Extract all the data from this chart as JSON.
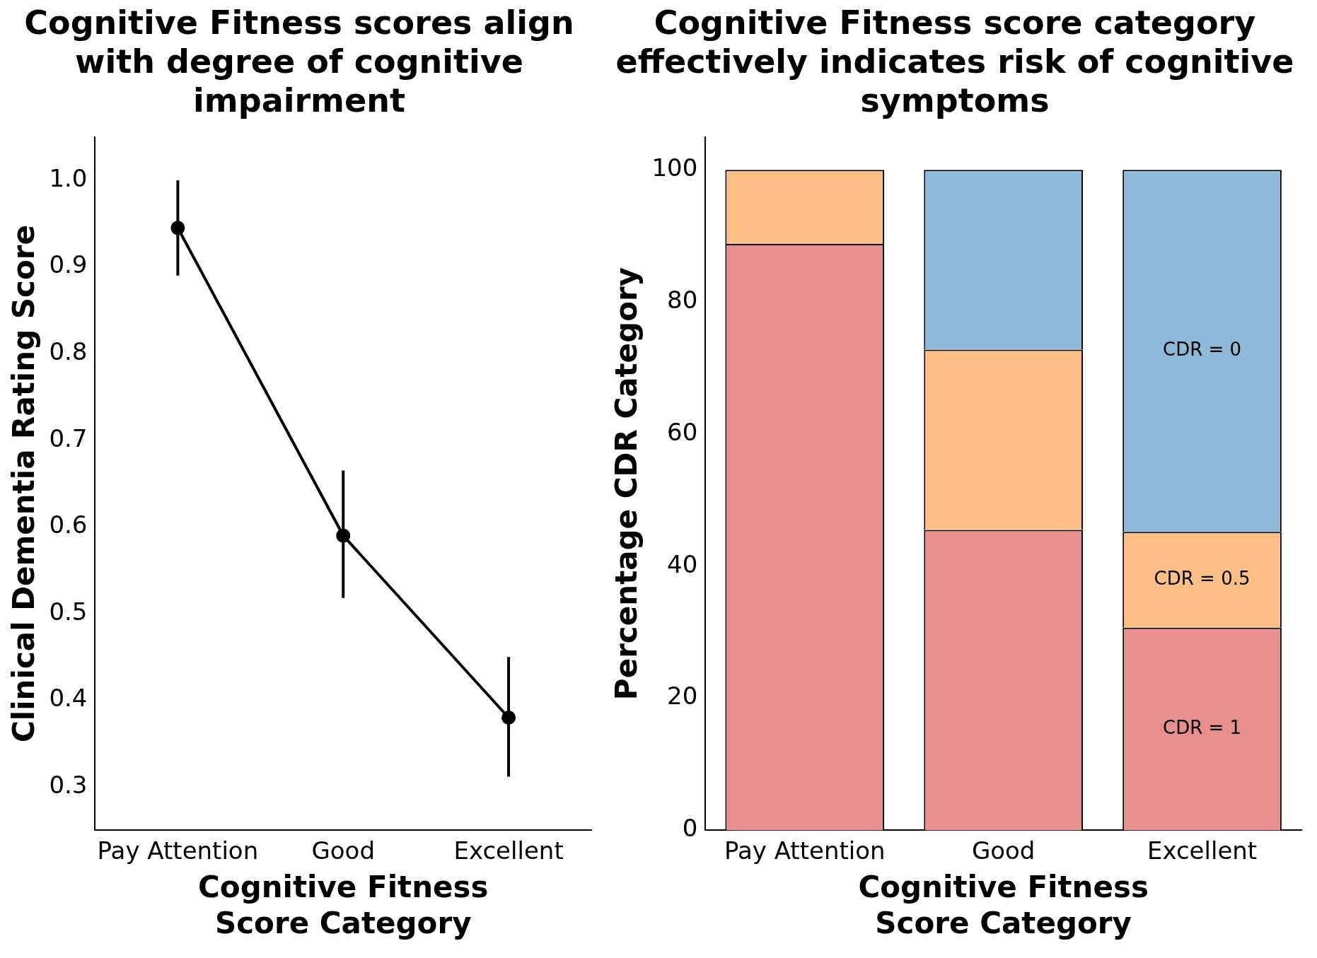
{
  "chart_data": [
    {
      "type": "line",
      "title": "Cognitive Fitness scores align with degree of cognitive impairment",
      "xlabel": "Cognitive Fitness Score Category",
      "ylabel": "Clinical Dementia Rating Score",
      "categories": [
        "Pay Attention",
        "Good",
        "Excellent"
      ],
      "values": [
        0.945,
        0.59,
        0.38
      ],
      "errors": [
        [
          0.89,
          1.0
        ],
        [
          0.518,
          0.665
        ],
        [
          0.312,
          0.45
        ]
      ],
      "color": "#000000",
      "marker": "circle",
      "line_style": "solid",
      "ylim": [
        0.25,
        1.05
      ],
      "yticks": [
        0.3,
        0.4,
        0.5,
        0.6,
        0.7,
        0.8,
        0.9,
        {
          "value": 1,
          "label": "1.0"
        }
      ],
      "grid": false
    },
    {
      "type": "bar",
      "title": "Cognitive Fitness score category effectively indicates risk of cognitive symptoms",
      "xlabel": "Cognitive Fitness Score Category",
      "ylabel": "Percentage CDR Category",
      "categories": [
        "Pay Attention",
        "Good",
        "Excellent"
      ],
      "stacked": true,
      "series": [
        {
          "name": "CDR = 1",
          "color": "#e8908f",
          "values": [
            88.8,
            45.5,
            30.7
          ]
        },
        {
          "name": "CDR = 0.5",
          "color": "#fdbf86",
          "values": [
            11.2,
            27.3,
            14.5
          ]
        },
        {
          "name": "CDR = 0",
          "color": "#8fb9d9",
          "values": [
            null,
            27.2,
            54.8
          ]
        }
      ],
      "ylim": [
        0,
        105
      ],
      "yticks": [
        0,
        20,
        40,
        60,
        80,
        100
      ],
      "grid": false
    }
  ]
}
